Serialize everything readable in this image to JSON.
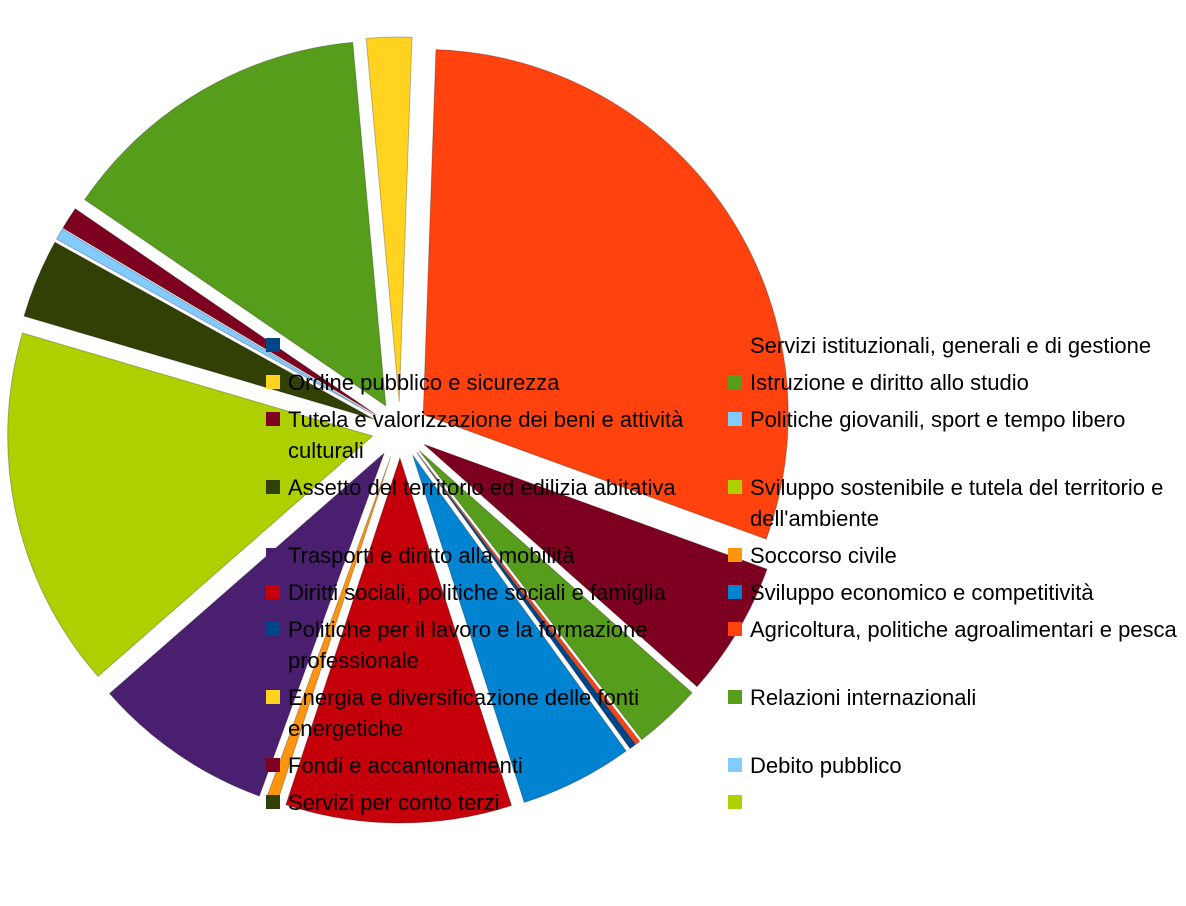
{
  "chart_data": {
    "type": "pie",
    "categories": [
      null,
      "Servizi istituzionali, generali e di gestione",
      "Ordine pubblico e sicurezza",
      "Istruzione e diritto allo studio",
      "Tutela e valorizzazione dei beni e attività culturali",
      "Politiche giovanili, sport e tempo libero",
      "Assetto del territorio ed edilizia abitativa",
      "Sviluppo sostenibile e tutela del territorio e dell'ambiente",
      "Trasporti e diritto alla mobilità",
      "Soccorso civile",
      "Diritti sociali, politiche sociali e famiglia",
      "Sviluppo economico e competitività",
      "Politiche per il lavoro e la formazione professionale",
      "Agricoltura, politiche agroalimentari e pesca",
      "Energia e diversificazione delle fonti energetiche",
      "Relazioni internazionali",
      "Fondi e accantonamenti",
      "Debito pubblico",
      "Servizi per conto terzi",
      null
    ],
    "values": [
      0,
      30,
      2,
      14,
      1,
      0.5,
      3.5,
      16,
      8,
      0.5,
      10,
      5,
      0.3,
      0.2,
      0,
      3,
      6,
      0,
      0,
      0
    ],
    "colors": [
      "#004586",
      "#ff420e",
      "#ffd320",
      "#579d1c",
      "#7e0021",
      "#83caff",
      "#314004",
      "#aecf00",
      "#4b1f6f",
      "#ff950e",
      "#c5000b",
      "#0084d1",
      "#004586",
      "#ff420e",
      "#ffd320",
      "#579d1c",
      "#7e0021",
      "#83caff",
      "#314004",
      "#aecf00"
    ]
  }
}
